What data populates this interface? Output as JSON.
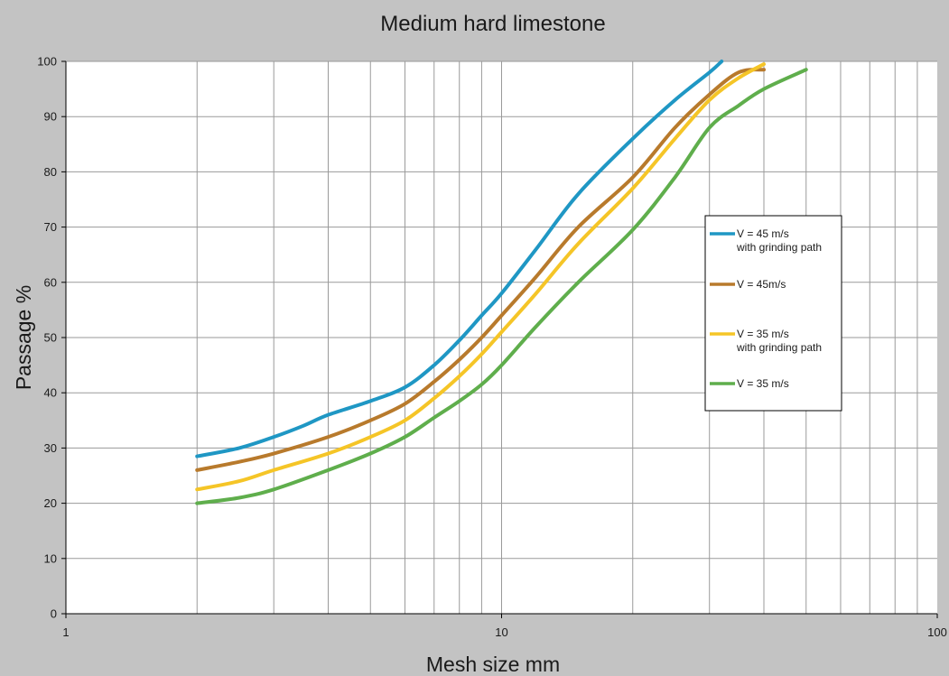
{
  "chart_data": {
    "type": "line",
    "title": "Medium hard limestone",
    "xlabel": "Mesh size mm",
    "ylabel": "Passage %",
    "x_scale": "log",
    "xlim": [
      1,
      100
    ],
    "ylim": [
      0,
      100
    ],
    "x_ticks": [
      "1",
      "10",
      "100"
    ],
    "y_ticks": [
      "0",
      "10",
      "20",
      "30",
      "40",
      "50",
      "60",
      "70",
      "80",
      "90",
      "100"
    ],
    "grid": true,
    "legend_position": "right",
    "series": [
      {
        "name": "V = 45 m/s\nwith grinding path",
        "color": "#1f97c4",
        "x": [
          2,
          2.5,
          3,
          3.5,
          4,
          5,
          6,
          7,
          8,
          9,
          10,
          12,
          15,
          20,
          25,
          30,
          32
        ],
        "y": [
          28.5,
          30,
          32,
          34,
          36,
          38.5,
          41,
          45,
          49.5,
          54,
          58,
          66,
          76,
          86,
          93,
          98,
          100
        ]
      },
      {
        "name": "V = 45m/s",
        "color": "#b87a2c",
        "x": [
          2,
          2.5,
          3,
          4,
          5,
          6,
          7,
          8,
          9,
          10,
          12,
          15,
          20,
          25,
          30,
          35,
          40
        ],
        "y": [
          26,
          27.5,
          29,
          32,
          35,
          38,
          42,
          46,
          50,
          54,
          61,
          70,
          79,
          88,
          94,
          98,
          98.5
        ]
      },
      {
        "name": "V = 35 m/s\nwith grinding path",
        "color": "#f5c527",
        "x": [
          2,
          2.5,
          3,
          4,
          5,
          6,
          7,
          8,
          9,
          10,
          12,
          15,
          20,
          25,
          30,
          35,
          40
        ],
        "y": [
          22.5,
          24,
          26,
          29,
          32,
          35,
          39,
          43,
          47,
          51,
          58,
          67,
          77,
          86,
          93,
          97,
          99.5
        ]
      },
      {
        "name": "V = 35 m/s",
        "color": "#5fae4c",
        "x": [
          2,
          2.5,
          3,
          4,
          5,
          6,
          7,
          8,
          9,
          10,
          12,
          15,
          20,
          25,
          30,
          35,
          40,
          50
        ],
        "y": [
          20,
          21,
          22.5,
          26,
          29,
          32,
          35.5,
          38.5,
          41.5,
          45,
          52,
          60,
          69.5,
          79,
          88,
          92,
          95,
          98.5
        ]
      }
    ]
  }
}
